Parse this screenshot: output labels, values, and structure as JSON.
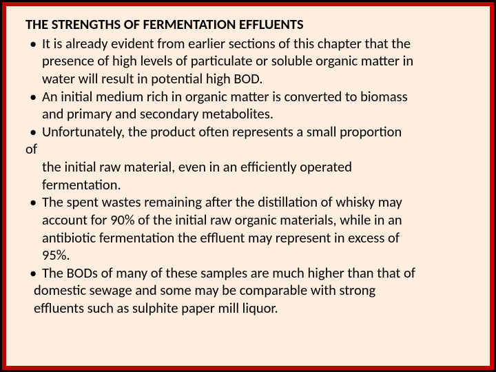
{
  "colors": {
    "outer_border": "#000000",
    "inner_border": "#c00000",
    "background": "#fdeee0",
    "text": "#000000"
  },
  "typography": {
    "font_family": "Calibri",
    "title_fontsize": 20.5,
    "title_weight": "bold",
    "body_fontsize": 20.5,
    "line_height": 1.25
  },
  "title": "THE STRENGTHS OF FERMENTATION EFFLUENTS",
  "bullets": [
    {
      "first": "It is already evident from earlier sections of this chapter that the",
      "cont": [
        "presence of high levels of particulate or soluble organic matter in",
        "water will result in potential high BOD."
      ]
    },
    {
      "first": "An initial medium rich in organic matter is converted to biomass",
      "cont": [
        "and primary and secondary metabolites."
      ]
    },
    {
      "first": "Unfortunately, the product often represents a small proportion",
      "of_wrap": "of",
      "cont": [
        "the initial raw material, even in an efficiently operated",
        "fermentation."
      ]
    },
    {
      "first": "The spent wastes remaining after the distillation of whisky may",
      "cont": [
        "account for 90% of the initial raw organic materials, while in an",
        "antibiotic fermentation the effluent may represent in excess of",
        "95%."
      ]
    },
    {
      "first": "The BODs of many of these samples are much higher than that of",
      "cont2": [
        "domestic sewage and some may be comparable with strong",
        "effluents such as sulphite paper mill liquor."
      ]
    }
  ]
}
